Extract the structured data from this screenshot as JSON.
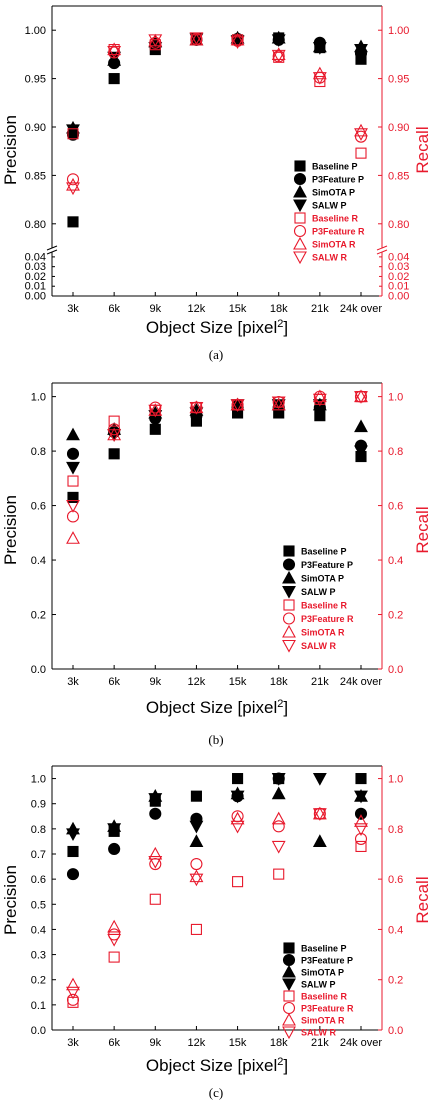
{
  "colors": {
    "precision": "#000000",
    "recall": "#e8192c"
  },
  "chart_data": [
    {
      "type": "scatter",
      "caption": "(a)",
      "xlabel": "Object Size [pixel",
      "xlabel_sup": "2",
      "xlabel_end": "]",
      "ylabel_left": "Precision",
      "ylabel_right": "Recall",
      "categories": [
        "3k",
        "6k",
        "9k",
        "12k",
        "15k",
        "18k",
        "21k",
        "24k over"
      ],
      "axis_break": true,
      "ylim_upper": [
        0.775,
        1.025
      ],
      "ylim_lower": [
        0,
        0.045
      ],
      "yticks_upper": [
        "0.80",
        "0.85",
        "0.90",
        "0.95",
        "1.00"
      ],
      "yticks_lower": [
        "0.00",
        "0.01",
        "0.02",
        "0.03",
        "0.04"
      ],
      "legend_position": "center-right",
      "series": [
        {
          "name": "Baseline P",
          "marker": "square-filled",
          "axis": "left",
          "values": [
            0.802,
            0.95,
            0.98,
            0.99,
            0.99,
            0.992,
            0.982,
            0.97
          ]
        },
        {
          "name": "P3Feature P",
          "marker": "circle-filled",
          "axis": "left",
          "values": [
            0.892,
            0.966,
            0.984,
            0.99,
            0.991,
            0.99,
            0.987,
            0.976
          ]
        },
        {
          "name": "SimOTA P",
          "marker": "triangle-up-filled",
          "axis": "left",
          "values": [
            0.899,
            0.969,
            0.988,
            0.99,
            0.992,
            0.992,
            0.983,
            0.983
          ]
        },
        {
          "name": "SALW P",
          "marker": "triangle-down-filled",
          "axis": "left",
          "values": [
            0.897,
            0.972,
            0.982,
            0.991,
            0.989,
            0.99,
            0.982,
            0.98
          ]
        },
        {
          "name": "Baseline R",
          "marker": "square-open",
          "axis": "right",
          "values": [
            0.893,
            0.98,
            0.985,
            0.99,
            0.99,
            0.972,
            0.947,
            0.873
          ]
        },
        {
          "name": "P3Feature R",
          "marker": "circle-open",
          "axis": "right",
          "values": [
            0.846,
            0.977,
            0.987,
            0.991,
            0.989,
            0.973,
            0.951,
            0.89
          ]
        },
        {
          "name": "SimOTA R",
          "marker": "triangle-up-open",
          "axis": "right",
          "values": [
            0.84,
            0.98,
            0.989,
            0.99,
            0.99,
            0.975,
            0.955,
            0.896
          ]
        },
        {
          "name": "SALW R",
          "marker": "triangle-down-open",
          "axis": "right",
          "values": [
            0.837,
            0.978,
            0.99,
            0.992,
            0.988,
            0.974,
            0.951,
            0.893
          ]
        }
      ]
    },
    {
      "type": "scatter",
      "caption": "(b)",
      "xlabel": "Object Size [pixel",
      "xlabel_sup": "2",
      "xlabel_end": "]",
      "ylabel_left": "Precision",
      "ylabel_right": "Recall",
      "categories": [
        "3k",
        "6k",
        "9k",
        "12k",
        "15k",
        "18k",
        "21k",
        "24k over"
      ],
      "ylim": [
        0,
        1.05
      ],
      "yticks": [
        "0.0",
        "0.2",
        "0.4",
        "0.6",
        "0.8",
        "1.0"
      ],
      "legend_position": "center-right",
      "series": [
        {
          "name": "Baseline P",
          "marker": "square-filled",
          "axis": "left",
          "values": [
            0.63,
            0.79,
            0.88,
            0.91,
            0.94,
            0.94,
            0.93,
            0.78
          ]
        },
        {
          "name": "P3Feature P",
          "marker": "circle-filled",
          "axis": "left",
          "values": [
            0.79,
            0.87,
            0.92,
            0.93,
            0.96,
            0.96,
            0.96,
            0.82
          ]
        },
        {
          "name": "SimOTA P",
          "marker": "triangle-up-filled",
          "axis": "left",
          "values": [
            0.86,
            0.88,
            0.94,
            0.95,
            0.97,
            0.97,
            0.97,
            0.89
          ]
        },
        {
          "name": "SALW P",
          "marker": "triangle-down-filled",
          "axis": "left",
          "values": [
            0.74,
            0.86,
            0.93,
            0.94,
            0.97,
            0.97,
            0.97,
            0.8
          ]
        },
        {
          "name": "Baseline R",
          "marker": "square-open",
          "axis": "right",
          "values": [
            0.69,
            0.91,
            0.95,
            0.96,
            0.97,
            0.98,
            0.99,
            1.0
          ]
        },
        {
          "name": "P3Feature R",
          "marker": "circle-open",
          "axis": "right",
          "values": [
            0.56,
            0.88,
            0.96,
            0.96,
            0.97,
            0.98,
            1.0,
            1.0
          ]
        },
        {
          "name": "SimOTA R",
          "marker": "triangle-up-open",
          "axis": "right",
          "values": [
            0.48,
            0.86,
            0.95,
            0.96,
            0.97,
            0.97,
            1.0,
            1.0
          ]
        },
        {
          "name": "SALW R",
          "marker": "triangle-down-open",
          "axis": "right",
          "values": [
            0.6,
            0.86,
            0.95,
            0.96,
            0.97,
            0.98,
            0.99,
            1.0
          ]
        }
      ]
    },
    {
      "type": "scatter",
      "caption": "(c)",
      "xlabel": "Object Size [pixel",
      "xlabel_sup": "2",
      "xlabel_end": "]",
      "ylabel_left": "Precision",
      "ylabel_right": "Recall",
      "categories": [
        "3k",
        "6k",
        "9k",
        "12k",
        "15k",
        "18k",
        "21k",
        "24k over"
      ],
      "ylim": [
        0,
        1.05
      ],
      "yticks_left": [
        "0.0",
        "0.1",
        "0.2",
        "0.3",
        "0.4",
        "0.5",
        "0.6",
        "0.7",
        "0.8",
        "0.9",
        "1.0"
      ],
      "yticks_right": [
        "0.0",
        "0.2",
        "0.4",
        "0.6",
        "0.8",
        "1.0"
      ],
      "legend_position": "lower-right",
      "series": [
        {
          "name": "Baseline P",
          "marker": "square-filled",
          "axis": "left",
          "values": [
            0.71,
            0.79,
            0.91,
            0.93,
            1.0,
            1.0,
            null,
            1.0
          ]
        },
        {
          "name": "P3Feature P",
          "marker": "circle-filled",
          "axis": "left",
          "values": [
            0.62,
            0.72,
            0.86,
            0.84,
            0.93,
            1.0,
            null,
            0.86
          ]
        },
        {
          "name": "SimOTA P",
          "marker": "triangle-up-filled",
          "axis": "left",
          "values": [
            0.8,
            0.81,
            0.93,
            0.75,
            0.94,
            0.94,
            0.75,
            0.93
          ]
        },
        {
          "name": "SALW P",
          "marker": "triangle-down-filled",
          "axis": "left",
          "values": [
            0.78,
            0.8,
            0.92,
            0.81,
            0.93,
            1.0,
            1.0,
            0.93
          ]
        },
        {
          "name": "Baseline R",
          "marker": "square-open",
          "axis": "right",
          "values": [
            0.11,
            0.29,
            0.52,
            0.4,
            0.59,
            0.62,
            0.86,
            0.73
          ]
        },
        {
          "name": "P3Feature R",
          "marker": "circle-open",
          "axis": "right",
          "values": [
            0.12,
            0.38,
            0.66,
            0.66,
            0.85,
            0.81,
            0.86,
            0.76
          ]
        },
        {
          "name": "SimOTA R",
          "marker": "triangle-up-open",
          "axis": "right",
          "values": [
            0.18,
            0.41,
            0.7,
            0.61,
            0.84,
            0.84,
            0.86,
            0.83
          ]
        },
        {
          "name": "SALW R",
          "marker": "triangle-down-open",
          "axis": "right",
          "values": [
            0.15,
            0.36,
            0.67,
            0.6,
            0.81,
            0.73,
            0.86,
            0.8
          ]
        }
      ]
    }
  ]
}
